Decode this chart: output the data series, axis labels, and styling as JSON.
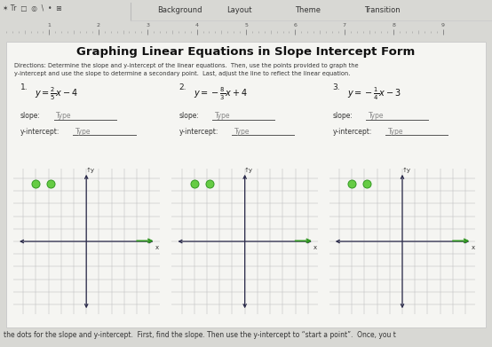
{
  "title": "Graphing Linear Equations in Slope Intercept Form",
  "directions1": "Directions: Determine the slope and y-intercept of the linear equations.  Then, use the points provided to graph the",
  "directions2": "y-intercept and use the slope to determine a secondary point.  Last, adjust the line to reflect the linear equation.",
  "eq_labels": [
    "1.",
    "2.",
    "3."
  ],
  "eq_texts": [
    "$y = \\frac{2}{5}x - 4$",
    "$y = -\\frac{8}{3}x + 4$",
    "$y = -\\frac{1}{4}x - 3$"
  ],
  "toolbar_bg": "#e0e0e0",
  "toolbar_text_color": "#333333",
  "toolbar_items": [
    "Background",
    "Layout",
    "Theme",
    "Transition"
  ],
  "bg_color": "#d8d8d4",
  "card_color": "#f5f5f2",
  "grid_color": "#bbbbbb",
  "axis_color": "#2a2a4a",
  "dot_color": "#66cc44",
  "dot_edge_color": "#339922",
  "footer_text": "the dots for the slope and y-intercept.  First, find the slope. Then use the y-intercept to “start a point”.  Once, you t",
  "ruler_numbers": [
    1,
    2,
    3,
    4,
    5,
    6,
    7,
    8,
    9
  ],
  "slope_label": "slope:",
  "yint_label": "y-intercept:",
  "type_text": "Type"
}
